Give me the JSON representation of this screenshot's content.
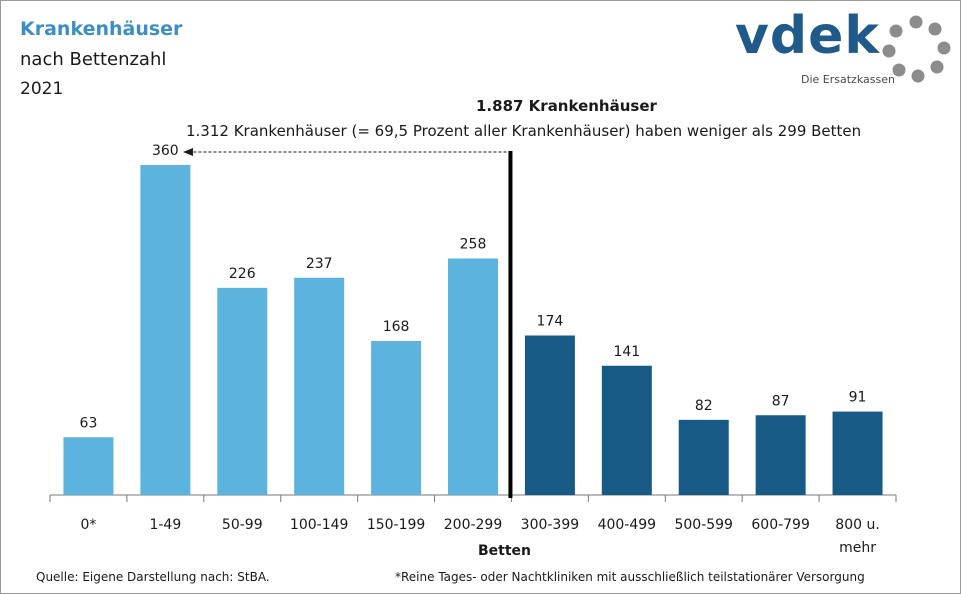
{
  "header": {
    "title": "Krankenhäuser",
    "subtitle": "nach Bettenzahl",
    "year": "2021"
  },
  "logo": {
    "wordmark": "vdek",
    "tagline": "Die Ersatzkassen"
  },
  "colors": {
    "light_bar": "#5cb3de",
    "dark_bar": "#175a86",
    "title": "#3a8fc4"
  },
  "chart_data": {
    "type": "bar",
    "title": "Krankenhäuser nach Bettenzahl 2021",
    "xlabel": "Betten",
    "ylabel": "",
    "ylim": [
      0,
      380
    ],
    "categories": [
      "0*",
      "1-49",
      "50-99",
      "100-149",
      "150-199",
      "200-299",
      "300-399",
      "400-499",
      "500-599",
      "600-799",
      "800 u. mehr"
    ],
    "category_lines": [
      [
        "0*"
      ],
      [
        "1-49"
      ],
      [
        "50-99"
      ],
      [
        "100-149"
      ],
      [
        "150-199"
      ],
      [
        "200-299"
      ],
      [
        "300-399"
      ],
      [
        "400-499"
      ],
      [
        "500-599"
      ],
      [
        "600-799"
      ],
      [
        "800 u.",
        "mehr"
      ]
    ],
    "values": [
      63,
      360,
      226,
      237,
      168,
      258,
      174,
      141,
      82,
      87,
      91
    ],
    "groups": [
      "light",
      "light",
      "light",
      "light",
      "light",
      "light",
      "dark",
      "dark",
      "dark",
      "dark",
      "dark"
    ],
    "annotations": {
      "total": "1.887 Krankenhäuser",
      "note": "1.312 Krankenhäuser (= 69,5 Prozent aller Krankenhäuser) haben weniger als 299 Betten"
    }
  },
  "footer": {
    "source": "Quelle: Eigene Darstellung nach: StBA.",
    "footnote": "*Reine Tages- oder Nachtkliniken mit ausschließlich teilstationärer Versorgung"
  }
}
